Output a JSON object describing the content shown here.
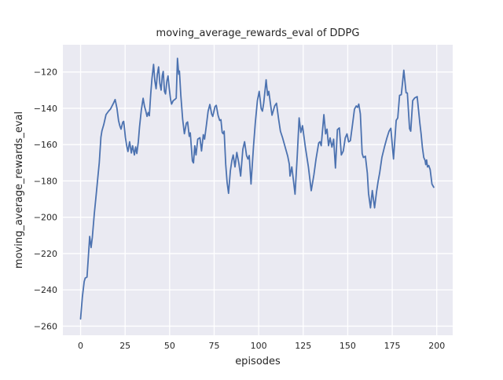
{
  "chart_data": {
    "type": "line",
    "title": "moving_average_rewards_eval of DDPG",
    "xlabel": "episodes",
    "ylabel": "moving_average_rewards_eval",
    "legend_position": "none",
    "grid": true,
    "axes_bg_color": "#EAEAF2",
    "grid_color": "#FFFFFF",
    "line_color": "#4C72B0",
    "text_color": "#262626",
    "xlim": [
      -9.95,
      208.95
    ],
    "ylim": [
      -265,
      -105
    ],
    "xtick_values": [
      0,
      25,
      50,
      75,
      100,
      125,
      150,
      175,
      200
    ],
    "xtick_labels": [
      "0",
      "25",
      "50",
      "75",
      "100",
      "125",
      "150",
      "175",
      "200"
    ],
    "ytick_values": [
      -260,
      -240,
      -220,
      -200,
      -180,
      -160,
      -140,
      -120
    ],
    "ytick_labels": [
      "−260",
      "−240",
      "−220",
      "−200",
      "−180",
      "−160",
      "−140",
      "−120"
    ],
    "series": [
      {
        "name": "moving_average_rewards_eval",
        "points": [
          [
            0,
            -256
          ],
          [
            1,
            -244
          ],
          [
            2,
            -235.5
          ],
          [
            2.6,
            -233.5
          ],
          [
            3.6,
            -233
          ],
          [
            4.2,
            -224
          ],
          [
            5.1,
            -210.6
          ],
          [
            5.9,
            -216.7
          ],
          [
            6.6,
            -211
          ],
          [
            7.7,
            -198
          ],
          [
            8.7,
            -188
          ],
          [
            9.7,
            -178
          ],
          [
            10.5,
            -170
          ],
          [
            11.4,
            -156
          ],
          [
            12,
            -152.4
          ],
          [
            13,
            -149
          ],
          [
            14.3,
            -143.5
          ],
          [
            15.8,
            -141.5
          ],
          [
            16.8,
            -140.4
          ],
          [
            18.3,
            -137.5
          ],
          [
            19.4,
            -135.2
          ],
          [
            20.4,
            -140
          ],
          [
            21.3,
            -146.7
          ],
          [
            22,
            -149.6
          ],
          [
            22.7,
            -151.5
          ],
          [
            23.7,
            -147.7
          ],
          [
            24.2,
            -147.2
          ],
          [
            25.2,
            -156.2
          ],
          [
            25.9,
            -160.6
          ],
          [
            26.6,
            -163.8
          ],
          [
            27.5,
            -158.4
          ],
          [
            28.5,
            -164.6
          ],
          [
            29.2,
            -160.6
          ],
          [
            30.2,
            -165.7
          ],
          [
            30.9,
            -161.3
          ],
          [
            31.6,
            -164.9
          ],
          [
            32.4,
            -158.4
          ],
          [
            33.1,
            -150.4
          ],
          [
            34.1,
            -141
          ],
          [
            35.1,
            -134.5
          ],
          [
            35.9,
            -139
          ],
          [
            36.6,
            -141.5
          ],
          [
            37.3,
            -144.5
          ],
          [
            38,
            -142.3
          ],
          [
            38.6,
            -144.1
          ],
          [
            39.4,
            -132
          ],
          [
            40.1,
            -123.4
          ],
          [
            41,
            -115.8
          ],
          [
            41.7,
            -124.8
          ],
          [
            42.4,
            -129.2
          ],
          [
            43.1,
            -121.2
          ],
          [
            43.8,
            -117.2
          ],
          [
            44.5,
            -126.3
          ],
          [
            45.2,
            -130
          ],
          [
            45.9,
            -121.9
          ],
          [
            46.4,
            -119.7
          ],
          [
            47.1,
            -130.7
          ],
          [
            47.7,
            -132.1
          ],
          [
            48.5,
            -124.8
          ],
          [
            49.1,
            -122.2
          ],
          [
            49.8,
            -129.2
          ],
          [
            50.5,
            -135.1
          ],
          [
            51.1,
            -137.7
          ],
          [
            52,
            -135.8
          ],
          [
            53,
            -135.1
          ],
          [
            53.7,
            -134.4
          ],
          [
            54.4,
            -112.5
          ],
          [
            55.1,
            -121.2
          ],
          [
            55.5,
            -119.5
          ],
          [
            56.3,
            -133
          ],
          [
            57.3,
            -146
          ],
          [
            58.3,
            -154
          ],
          [
            59.4,
            -148.2
          ],
          [
            60.1,
            -147.5
          ],
          [
            61,
            -155.4
          ],
          [
            61.6,
            -153.5
          ],
          [
            62.8,
            -169
          ],
          [
            63.4,
            -170.1
          ],
          [
            64.1,
            -160.6
          ],
          [
            64.8,
            -165.7
          ],
          [
            65.8,
            -157
          ],
          [
            67,
            -156.2
          ],
          [
            67.9,
            -163.5
          ],
          [
            68.9,
            -154.5
          ],
          [
            69.6,
            -157
          ],
          [
            70.7,
            -149
          ],
          [
            71.6,
            -141.6
          ],
          [
            72.6,
            -137.9
          ],
          [
            73.6,
            -143.1
          ],
          [
            74.2,
            -144.5
          ],
          [
            75.5,
            -139
          ],
          [
            76.2,
            -138.4
          ],
          [
            77.2,
            -143.9
          ],
          [
            78.1,
            -146.7
          ],
          [
            78.8,
            -146.3
          ],
          [
            79.5,
            -153.3
          ],
          [
            80.1,
            -154
          ],
          [
            80.6,
            -152.6
          ],
          [
            81.5,
            -171
          ],
          [
            82.3,
            -181
          ],
          [
            83.1,
            -186.8
          ],
          [
            84.1,
            -174.4
          ],
          [
            85,
            -168.6
          ],
          [
            85.7,
            -165.7
          ],
          [
            86.7,
            -172.3
          ],
          [
            87.7,
            -164.3
          ],
          [
            88.9,
            -170.5
          ],
          [
            89.9,
            -177.3
          ],
          [
            91.1,
            -162.5
          ],
          [
            92.1,
            -158.4
          ],
          [
            93.2,
            -166
          ],
          [
            94,
            -167.9
          ],
          [
            94.7,
            -166
          ],
          [
            95.7,
            -181.7
          ],
          [
            97.1,
            -160.6
          ],
          [
            98.1,
            -148.2
          ],
          [
            99.3,
            -135.8
          ],
          [
            100.3,
            -130.7
          ],
          [
            101.4,
            -140.1
          ],
          [
            102.1,
            -141.6
          ],
          [
            102.8,
            -137.2
          ],
          [
            104.2,
            -124.3
          ],
          [
            105,
            -132.9
          ],
          [
            105.7,
            -130.7
          ],
          [
            106.4,
            -135.8
          ],
          [
            107.5,
            -143.8
          ],
          [
            109,
            -138.7
          ],
          [
            110,
            -137.2
          ],
          [
            111.2,
            -146
          ],
          [
            112.2,
            -152.6
          ],
          [
            113.4,
            -156.2
          ],
          [
            115.1,
            -162.1
          ],
          [
            116.3,
            -166.4
          ],
          [
            117.2,
            -170.8
          ],
          [
            117.6,
            -177.3
          ],
          [
            118.6,
            -172.3
          ],
          [
            119.5,
            -179.5
          ],
          [
            120.4,
            -187.3
          ],
          [
            121.6,
            -167
          ],
          [
            122.7,
            -145.3
          ],
          [
            123.7,
            -153.3
          ],
          [
            124.6,
            -149.6
          ],
          [
            126.2,
            -161.3
          ],
          [
            127.9,
            -172.3
          ],
          [
            129.5,
            -185.4
          ],
          [
            131,
            -176.6
          ],
          [
            132.2,
            -167.9
          ],
          [
            133.7,
            -159.1
          ],
          [
            134.4,
            -158.4
          ],
          [
            135.1,
            -160.6
          ],
          [
            136.6,
            -143.5
          ],
          [
            137.6,
            -154.1
          ],
          [
            138.4,
            -151.5
          ],
          [
            139.2,
            -160.6
          ],
          [
            140.1,
            -156.3
          ],
          [
            141.1,
            -161.4
          ],
          [
            142.1,
            -157
          ],
          [
            143.1,
            -172.9
          ],
          [
            144.2,
            -151.8
          ],
          [
            145.3,
            -150.8
          ],
          [
            146.4,
            -165.7
          ],
          [
            147.5,
            -163.5
          ],
          [
            148.6,
            -156.3
          ],
          [
            149.6,
            -154.1
          ],
          [
            150.5,
            -158.5
          ],
          [
            151.5,
            -157.8
          ],
          [
            152.7,
            -149
          ],
          [
            153.8,
            -140.5
          ],
          [
            154.8,
            -138.7
          ],
          [
            155.5,
            -139.5
          ],
          [
            156.2,
            -137.7
          ],
          [
            157.1,
            -143.1
          ],
          [
            158.1,
            -164.9
          ],
          [
            158.8,
            -167.1
          ],
          [
            159.9,
            -166.4
          ],
          [
            161,
            -175.8
          ],
          [
            161.7,
            -186.8
          ],
          [
            162.8,
            -194.8
          ],
          [
            163.8,
            -185.3
          ],
          [
            165.1,
            -194.8
          ],
          [
            166.2,
            -186
          ],
          [
            167.1,
            -180
          ],
          [
            167.9,
            -175.8
          ],
          [
            169.2,
            -167.1
          ],
          [
            170.6,
            -161.4
          ],
          [
            172,
            -156.3
          ],
          [
            173.2,
            -152.6
          ],
          [
            174.2,
            -151
          ],
          [
            175.7,
            -167.9
          ],
          [
            177.2,
            -146.7
          ],
          [
            178.1,
            -145.3
          ],
          [
            179.1,
            -132.9
          ],
          [
            180.1,
            -132.5
          ],
          [
            181.5,
            -119
          ],
          [
            182.8,
            -131.4
          ],
          [
            183.5,
            -131.6
          ],
          [
            184.7,
            -151.2
          ],
          [
            185.4,
            -152.6
          ],
          [
            186.5,
            -135.8
          ],
          [
            187.6,
            -134.3
          ],
          [
            189,
            -133.6
          ],
          [
            190.5,
            -148.2
          ],
          [
            191.2,
            -154.1
          ],
          [
            191.9,
            -161.4
          ],
          [
            192.7,
            -167.1
          ],
          [
            193.4,
            -168.6
          ],
          [
            193.8,
            -171
          ],
          [
            194.3,
            -168.5
          ],
          [
            194.8,
            -172.3
          ],
          [
            195.5,
            -171.5
          ],
          [
            196.3,
            -173.7
          ],
          [
            197.3,
            -181.7
          ],
          [
            198.3,
            -183.5
          ]
        ]
      }
    ]
  }
}
